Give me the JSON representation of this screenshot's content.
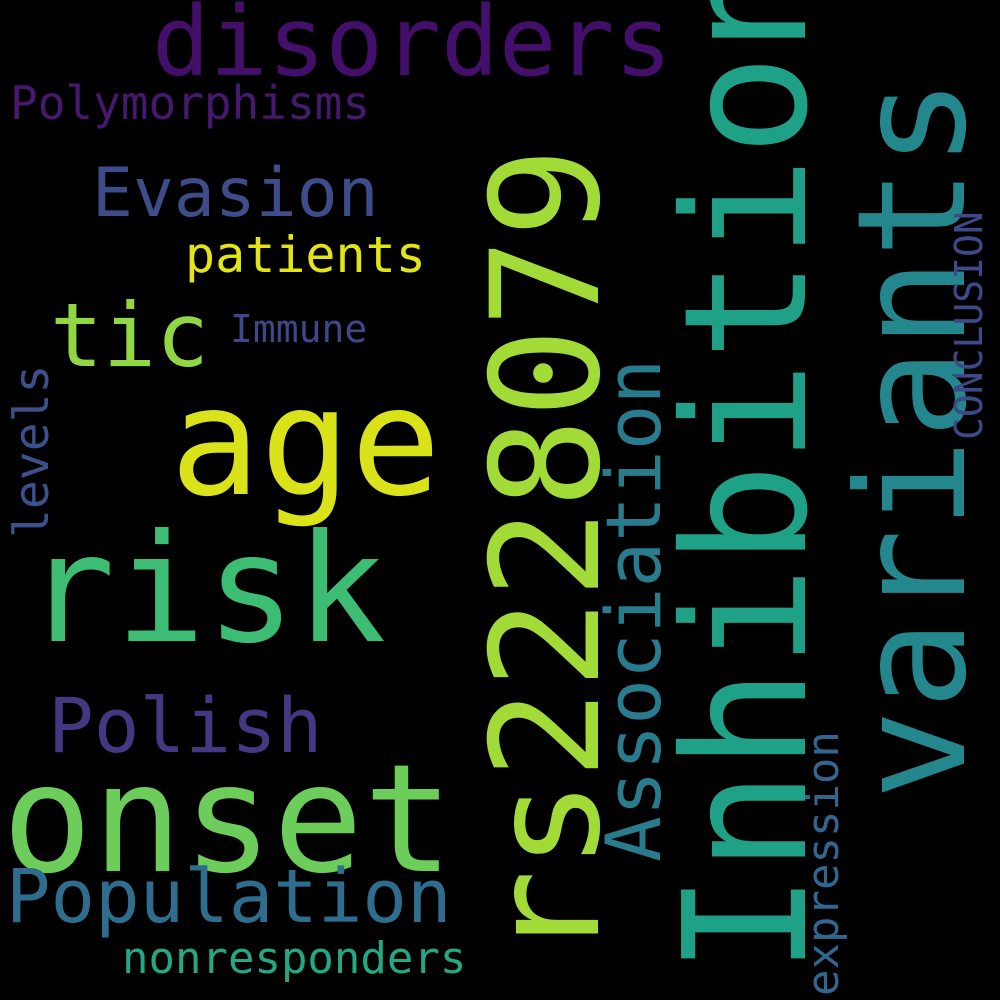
{
  "words": {
    "disorders": {
      "text": "disorders",
      "color": "#440f6b"
    },
    "polymorphisms": {
      "text": "Polymorphisms",
      "color": "#46186e"
    },
    "evasion": {
      "text": "Evasion",
      "color": "#3e4c8a"
    },
    "patients": {
      "text": "patients",
      "color": "#e2e418"
    },
    "immune": {
      "text": "Immune",
      "color": "#3f4788"
    },
    "tic": {
      "text": "tic",
      "color": "#90d743"
    },
    "age": {
      "text": "age",
      "color": "#dae319"
    },
    "risk": {
      "text": "risk",
      "color": "#3dbc74"
    },
    "polish": {
      "text": "Polish",
      "color": "#453882"
    },
    "onset": {
      "text": "onset",
      "color": "#6ccd5a"
    },
    "population": {
      "text": "Population",
      "color": "#2e6d8e"
    },
    "nonresponders": {
      "text": "nonresponders",
      "color": "#22a884"
    },
    "rs": {
      "text": "rs2228079",
      "color": "#a2da37"
    },
    "inhibition": {
      "text": "Inhibition",
      "color": "#1fa187"
    },
    "variants": {
      "text": "variants",
      "color": "#24878e"
    },
    "association": {
      "text": "Association",
      "color": "#287c8e"
    },
    "levels": {
      "text": "levels",
      "color": "#3b518b"
    },
    "expression": {
      "text": "expression",
      "color": "#31678e"
    },
    "conclusion": {
      "text": "CONCLUSION",
      "color": "#3e4989"
    }
  }
}
